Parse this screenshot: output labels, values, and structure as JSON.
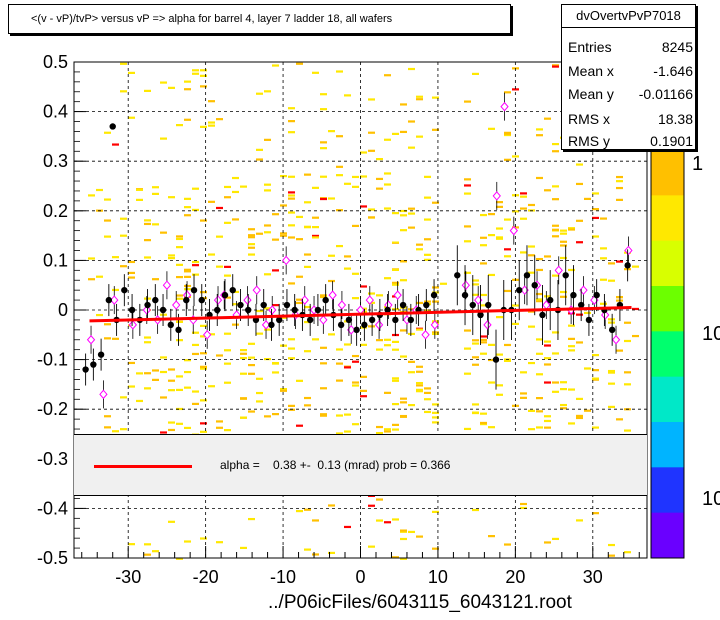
{
  "window": {
    "title": "<(v - vP)/tvP> versus   vP => alpha for barrel 4, layer 7 ladder 18, all wafers",
    "footer": "../P06icFiles/6043115_6043121.root"
  },
  "stats": {
    "name": "dvOvertvPvP7018",
    "rows": [
      {
        "label": "Entries",
        "value": "8245"
      },
      {
        "label": "Mean x",
        "value": "-1.646"
      },
      {
        "label": "Mean y",
        "value": "-0.01166"
      },
      {
        "label": "RMS x",
        "value": "18.38"
      },
      {
        "label": "RMS y",
        "value": "0.1901"
      }
    ]
  },
  "fit": {
    "text": "alpha =    0.38 +-  0.13 (mrad) prob = 0.366",
    "line_color": "#ff0000"
  },
  "palette": {
    "labels": [
      "1",
      "10",
      "10"
    ],
    "colors": [
      "#6a00ff",
      "#1f34ff",
      "#00b4ff",
      "#00e8c8",
      "#00ff6e",
      "#6cff00",
      "#d8ff00",
      "#ffe800",
      "#ffc000"
    ]
  },
  "chart_data": {
    "type": "scatter",
    "title": "<(v - vP)/tvP> versus   vP => alpha for barrel 4, layer 7 ladder 18, all wafers",
    "xlabel": "",
    "ylabel": "",
    "xlim": [
      -37,
      37
    ],
    "ylim": [
      -0.5,
      0.5
    ],
    "xticks": [
      -30,
      -20,
      -10,
      0,
      10,
      20,
      30
    ],
    "yticks": [
      -0.5,
      -0.4,
      -0.3,
      -0.2,
      -0.1,
      0,
      0.1,
      0.2,
      0.3,
      0.4,
      0.5
    ],
    "grid": true,
    "fit_line": {
      "x": [
        -35,
        35
      ],
      "y": [
        -0.022,
        0.005
      ]
    },
    "profile_mean": {
      "name": "mean",
      "marker": "filled-circle",
      "color": "#000000",
      "x": [
        -35.5,
        -34.5,
        -33.5,
        -32.5,
        -31.5,
        -30.5,
        -29.5,
        -28.5,
        -27.5,
        -26.5,
        -25.5,
        -24.5,
        -23.5,
        -22.5,
        -21.5,
        -20.5,
        -19.5,
        -18.5,
        -17.5,
        -16.5,
        -15.5,
        -14.5,
        -13.5,
        -12.5,
        -11.5,
        -10.5,
        -9.5,
        -8.5,
        -7.5,
        -6.5,
        -5.5,
        -4.5,
        -3.5,
        -2.5,
        -1.5,
        -0.5,
        0.5,
        1.5,
        2.5,
        3.5,
        4.5,
        5.5,
        6.5,
        7.5,
        8.5,
        9.5,
        12.5,
        13.5,
        14.5,
        15.5,
        16.5,
        17.5,
        18.5,
        19.5,
        20.5,
        21.5,
        22.5,
        23.5,
        24.5,
        25.5,
        26.5,
        27.5,
        28.5,
        29.5,
        30.5,
        31.5,
        32.5,
        33.5,
        34.5
      ],
      "y": [
        -0.12,
        -0.11,
        -0.09,
        0.02,
        -0.02,
        0.04,
        0.0,
        -0.02,
        0.01,
        0.02,
        0.0,
        -0.03,
        -0.04,
        0.02,
        0.04,
        0.02,
        -0.01,
        0.0,
        0.03,
        0.04,
        0.01,
        0.0,
        -0.02,
        0.01,
        -0.03,
        -0.02,
        0.01,
        0.0,
        -0.01,
        -0.02,
        0.0,
        0.02,
        -0.01,
        -0.03,
        -0.02,
        -0.04,
        -0.03,
        -0.02,
        -0.01,
        0.0,
        -0.02,
        0.01,
        -0.02,
        0.0,
        0.01,
        0.03,
        0.07,
        0.03,
        0.01,
        -0.01,
        0.01,
        -0.1,
        0.0,
        0.0,
        0.04,
        0.07,
        0.05,
        -0.01,
        0.02,
        0.0,
        0.07,
        0.03,
        0.01,
        -0.02,
        0.03,
        0.0,
        -0.04,
        0.01,
        0.09
      ],
      "outliers": [
        {
          "x": -32.0,
          "y": 0.37
        }
      ]
    },
    "profile_spread": {
      "name": "spread",
      "marker": "open-diamond",
      "color": "#ff00ff",
      "x": [
        -34.8,
        -33.2,
        -31.8,
        -29.4,
        -27.6,
        -26.2,
        -25.0,
        -23.8,
        -22.4,
        -21.6,
        -19.8,
        -18.4,
        -17.6,
        -16.0,
        -14.6,
        -13.4,
        -12.2,
        -11.4,
        -9.6,
        -8.4,
        -7.2,
        -6.0,
        -4.8,
        -3.6,
        -2.4,
        -1.2,
        0.0,
        1.2,
        2.4,
        3.6,
        4.8,
        6.0,
        7.2,
        8.4,
        9.6,
        13.6,
        15.2,
        16.4,
        17.6,
        18.6,
        19.8,
        21.2,
        22.8,
        24.0,
        25.6,
        27.2,
        28.8,
        30.2,
        31.6,
        33.0,
        34.6
      ],
      "y": [
        -0.06,
        -0.17,
        0.02,
        -0.03,
        0.0,
        -0.02,
        0.05,
        0.01,
        0.03,
        -0.02,
        -0.05,
        0.02,
        0.03,
        -0.01,
        0.02,
        0.04,
        -0.03,
        0.0,
        0.1,
        -0.01,
        0.02,
        0.0,
        -0.02,
        0.03,
        0.01,
        -0.04,
        0.0,
        0.02,
        -0.03,
        0.01,
        0.03,
        -0.02,
        0.0,
        -0.05,
        -0.03,
        0.05,
        0.02,
        -0.03,
        0.23,
        0.41,
        0.16,
        0.04,
        0.05,
        0.01,
        0.08,
        0.0,
        0.04,
        0.02,
        -0.01,
        -0.06,
        0.12
      ]
    },
    "colz_scale": {
      "labels": [
        "1",
        "10",
        "10"
      ],
      "scale": "log"
    }
  }
}
